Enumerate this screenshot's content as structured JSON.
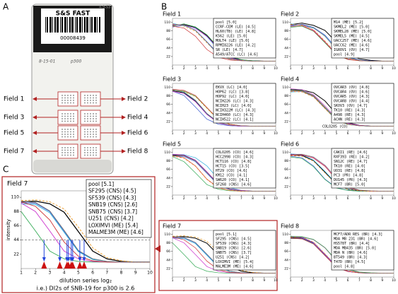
{
  "panel_labels": [
    "A",
    "B",
    "C"
  ],
  "slide": {
    "brand": "S&S FAST",
    "barcode_number": "00008439",
    "handwriting": [
      "4-9-53",
      "8-15-01",
      "p300"
    ]
  },
  "axes": {
    "x": [
      1,
      2,
      3,
      4,
      5,
      6,
      7,
      8,
      9,
      10
    ],
    "xlim": [
      1,
      10
    ],
    "xticks": [
      1,
      2,
      3,
      4,
      5,
      6,
      7,
      8,
      9,
      10
    ],
    "ylim": [
      0,
      120
    ],
    "yticks": [
      22,
      44,
      66,
      88,
      110
    ]
  },
  "palette": [
    "#000000",
    "#3355cc",
    "#22aadd",
    "#33aa55",
    "#cc33cc",
    "#cc3333",
    "#ee9922",
    "#777777"
  ],
  "fields": [
    {
      "title": "Field 1",
      "series": [
        {
          "name": "pool [5.0]",
          "di": 5.0,
          "values": [
            103,
            104,
            97,
            76,
            43,
            20,
            13,
            11,
            10,
            10
          ]
        },
        {
          "name": "CCRF-CEM (LE) [4.5]",
          "di": 4.5,
          "values": [
            98,
            102,
            90,
            60,
            29,
            16,
            12,
            10,
            10,
            10
          ]
        },
        {
          "name": "HL60(TB) (LE) [4.8]",
          "di": 4.8,
          "values": [
            107,
            101,
            95,
            73,
            40,
            19,
            12,
            11,
            10,
            10
          ]
        },
        {
          "name": "K562 (LE) [5.0]",
          "di": 5.0,
          "values": [
            100,
            106,
            98,
            78,
            45,
            22,
            14,
            11,
            10,
            10
          ]
        },
        {
          "name": "MOLT4 (LE) [5.0]",
          "di": 5.0,
          "values": [
            104,
            103,
            94,
            74,
            42,
            18,
            12,
            10,
            10,
            10
          ]
        },
        {
          "name": "RPMI8226 (LE) [4.2]",
          "di": 4.2,
          "values": [
            100,
            95,
            74,
            40,
            20,
            13,
            11,
            10,
            10,
            10
          ]
        },
        {
          "name": "SR (LE) [4.7]",
          "di": 4.7,
          "values": [
            106,
            100,
            87,
            57,
            28,
            16,
            12,
            10,
            10,
            10
          ]
        },
        {
          "name": "A549/ATCC (LC) [4.6]",
          "di": 4.6,
          "values": [
            102,
            103,
            89,
            59,
            26,
            15,
            11,
            10,
            10,
            10
          ]
        }
      ]
    },
    {
      "title": "Field 2",
      "series": [
        {
          "name": "M14 (ME) [5.2]",
          "di": 5.2,
          "values": [
            104,
            108,
            102,
            89,
            59,
            28,
            16,
            12,
            10,
            10
          ]
        },
        {
          "name": "SKMEL2 (ME) [5.0]",
          "di": 5.0,
          "values": [
            100,
            105,
            97,
            77,
            44,
            21,
            13,
            11,
            10,
            10
          ]
        },
        {
          "name": "SKMEL28 (ME) [5.0]",
          "di": 5.0,
          "values": [
            106,
            102,
            95,
            75,
            41,
            20,
            12,
            10,
            10,
            10
          ]
        },
        {
          "name": "SKMEL5 (ME) [4.5]",
          "di": 4.5,
          "values": [
            97,
            100,
            87,
            57,
            27,
            15,
            11,
            10,
            10,
            10
          ]
        },
        {
          "name": "UACC257 (ME) [4.6]",
          "di": 4.6,
          "values": [
            103,
            104,
            90,
            60,
            28,
            16,
            12,
            10,
            10,
            10
          ]
        },
        {
          "name": "UACC62 (ME) [4.6]",
          "di": 4.6,
          "values": [
            99,
            101,
            88,
            59,
            27,
            14,
            11,
            10,
            10,
            10
          ]
        },
        {
          "name": "IGROV1 (OV) [4.7]",
          "di": 4.7,
          "values": [
            105,
            102,
            91,
            62,
            30,
            16,
            12,
            10,
            10,
            10
          ]
        },
        {
          "name": "pool [4.9]",
          "di": 4.9,
          "values": [
            102,
            104,
            96,
            74,
            40,
            19,
            12,
            10,
            10,
            10
          ]
        }
      ]
    },
    {
      "title": "Field 3",
      "series": [
        {
          "name": "EKVX (LC) [4.0]",
          "di": 4.0,
          "values": [
            101,
            96,
            74,
            41,
            19,
            12,
            10,
            10,
            10,
            10
          ]
        },
        {
          "name": "HOP62 (LC) [3.8]",
          "di": 3.8,
          "values": [
            100,
            89,
            59,
            28,
            15,
            11,
            10,
            10,
            10,
            10
          ]
        },
        {
          "name": "HOP92 (LC) [4.0]",
          "di": 4.0,
          "values": [
            104,
            97,
            76,
            42,
            20,
            12,
            10,
            10,
            10,
            10
          ]
        },
        {
          "name": "NCIH226 (LC) [4.3]",
          "di": 4.3,
          "values": [
            103,
            100,
            87,
            57,
            27,
            15,
            11,
            10,
            10,
            10
          ]
        },
        {
          "name": "NCIH23 (LC) [4.0]",
          "di": 4.0,
          "values": [
            99,
            94,
            73,
            40,
            18,
            12,
            10,
            10,
            10,
            10
          ]
        },
        {
          "name": "NCIH322M (LC) [4.3]",
          "di": 4.3,
          "values": [
            105,
            102,
            89,
            58,
            28,
            15,
            11,
            10,
            10,
            10
          ]
        },
        {
          "name": "NCIH460 (LC) [4.3]",
          "di": 4.3,
          "values": [
            102,
            99,
            86,
            56,
            26,
            14,
            11,
            10,
            10,
            10
          ]
        },
        {
          "name": "NCIH522 (LC) [4.1]",
          "di": 4.1,
          "values": [
            103,
            98,
            77,
            43,
            20,
            13,
            11,
            10,
            10,
            10
          ]
        }
      ]
    },
    {
      "title": "Field 4",
      "note": "COLO205 (CO)",
      "series": [
        {
          "name": "OVCAR3 (OV) [4.8]",
          "di": 4.8,
          "values": [
            104,
            103,
            96,
            75,
            41,
            19,
            12,
            10,
            10,
            10
          ]
        },
        {
          "name": "OVCAR4 (OV) [4.6]",
          "di": 4.6,
          "values": [
            100,
            101,
            88,
            58,
            27,
            15,
            11,
            10,
            10,
            10
          ]
        },
        {
          "name": "OVCAR5 (OV) [4.3]",
          "di": 4.3,
          "values": [
            98,
            99,
            86,
            56,
            26,
            14,
            11,
            10,
            10,
            10
          ]
        },
        {
          "name": "OVCAR8 (OV) [4.4]",
          "di": 4.4,
          "values": [
            103,
            102,
            89,
            59,
            28,
            15,
            11,
            10,
            10,
            10
          ]
        },
        {
          "name": "SKOV3 (OV) [4.7]",
          "di": 4.7,
          "values": [
            106,
            104,
            91,
            62,
            30,
            17,
            12,
            10,
            10,
            10
          ]
        },
        {
          "name": "TK10 (RE) [4.3]",
          "di": 4.3,
          "values": [
            101,
            100,
            87,
            57,
            27,
            15,
            11,
            10,
            10,
            10
          ]
        },
        {
          "name": "A498 (RE) [4.3]",
          "di": 4.3,
          "values": [
            99,
            98,
            85,
            55,
            25,
            14,
            11,
            10,
            10,
            10
          ]
        },
        {
          "name": "ACHN (RE) [4.3]",
          "di": 4.3,
          "values": [
            102,
            101,
            88,
            58,
            26,
            15,
            11,
            10,
            10,
            10
          ]
        }
      ]
    },
    {
      "title": "Field 5",
      "series": [
        {
          "name": "COLO205 (CO) [4.6]",
          "di": 4.6,
          "values": [
            103,
            102,
            89,
            59,
            28,
            15,
            11,
            10,
            10,
            10
          ]
        },
        {
          "name": "HCC2998 (CO) [4.3]",
          "di": 4.3,
          "values": [
            100,
            99,
            86,
            56,
            26,
            14,
            11,
            10,
            10,
            10
          ]
        },
        {
          "name": "HCT116 (CO) [4.8]",
          "di": 4.8,
          "values": [
            104,
            104,
            96,
            75,
            41,
            19,
            12,
            10,
            10,
            10
          ]
        },
        {
          "name": "HCT15 (CO) [3.5]",
          "di": 3.5,
          "values": [
            99,
            86,
            57,
            27,
            15,
            11,
            10,
            10,
            10,
            10
          ]
        },
        {
          "name": "HT29 (CO) [4.6]",
          "di": 4.6,
          "values": [
            105,
            103,
            90,
            60,
            29,
            16,
            12,
            10,
            10,
            10
          ]
        },
        {
          "name": "KM12 (CO) [4.1]",
          "di": 4.1,
          "values": [
            102,
            96,
            75,
            41,
            19,
            12,
            10,
            10,
            10,
            10
          ]
        },
        {
          "name": "SW620 (CO) [4.1]",
          "di": 4.1,
          "values": [
            100,
            95,
            74,
            40,
            18,
            12,
            10,
            10,
            10,
            10
          ]
        },
        {
          "name": "SF268 (CNS) [4.6]",
          "di": 4.6,
          "values": [
            101,
            101,
            88,
            58,
            27,
            15,
            11,
            10,
            10,
            10
          ]
        }
      ]
    },
    {
      "title": "Field 6",
      "series": [
        {
          "name": "CAKI1 (RE) [4.6]",
          "di": 4.6,
          "values": [
            103,
            102,
            89,
            59,
            28,
            15,
            11,
            10,
            10,
            10
          ]
        },
        {
          "name": "RXF393 (RE) [4.2]",
          "di": 4.2,
          "values": [
            100,
            96,
            75,
            41,
            19,
            12,
            10,
            10,
            10,
            10
          ]
        },
        {
          "name": "SN12C (RE) [4.7]",
          "di": 4.7,
          "values": [
            106,
            104,
            90,
            61,
            29,
            16,
            12,
            10,
            10,
            10
          ]
        },
        {
          "name": "TK10 (RE) [4.0]",
          "di": 4.0,
          "values": [
            98,
            94,
            73,
            40,
            18,
            12,
            10,
            10,
            10,
            10
          ]
        },
        {
          "name": "UO31 (RE) [4.8]",
          "di": 4.8,
          "values": [
            104,
            103,
            96,
            75,
            41,
            19,
            12,
            10,
            10,
            10
          ]
        },
        {
          "name": "PC3 (PR) [4.8]",
          "di": 4.8,
          "values": [
            102,
            104,
            95,
            74,
            40,
            19,
            12,
            10,
            10,
            10
          ]
        },
        {
          "name": "DU145 (PR) [4.3]",
          "di": 4.3,
          "values": [
            101,
            100,
            87,
            57,
            27,
            15,
            11,
            10,
            10,
            10
          ]
        },
        {
          "name": "MCF7 (BR) [5.0]",
          "di": 5.0,
          "values": [
            105,
            105,
            98,
            77,
            44,
            21,
            13,
            11,
            10,
            10
          ]
        }
      ]
    },
    {
      "title": "Field 7",
      "series": [
        {
          "name": "pool [5.1]",
          "di": 5.1,
          "values": [
            103,
            104,
            100,
            87,
            57,
            27,
            15,
            11,
            10,
            10
          ]
        },
        {
          "name": "SF295 (CNS) [4.5]",
          "di": 4.5,
          "values": [
            102,
            101,
            88,
            58,
            27,
            15,
            11,
            10,
            10,
            10
          ]
        },
        {
          "name": "SF539 (CNS) [4.3]",
          "di": 4.3,
          "values": [
            100,
            99,
            86,
            56,
            26,
            14,
            11,
            10,
            10,
            10
          ]
        },
        {
          "name": "SNB19 (CNS) [2.6]",
          "di": 2.6,
          "values": [
            88,
            58,
            27,
            15,
            11,
            10,
            10,
            10,
            10,
            10
          ]
        },
        {
          "name": "SNB75 (CNS) [3.7]",
          "di": 3.7,
          "values": [
            101,
            88,
            58,
            27,
            15,
            11,
            10,
            10,
            10,
            10
          ]
        },
        {
          "name": "U251 (CNS) [4.2]",
          "di": 4.2,
          "values": [
            103,
            96,
            75,
            41,
            19,
            12,
            10,
            10,
            10,
            10
          ]
        },
        {
          "name": "LOXIMVI (ME) [5.4]",
          "di": 5.4,
          "values": [
            105,
            106,
            103,
            92,
            64,
            32,
            17,
            12,
            10,
            10
          ]
        },
        {
          "name": "MALME3M (ME) [4.6]",
          "di": 4.6,
          "values": [
            104,
            102,
            89,
            59,
            28,
            15,
            11,
            10,
            10,
            10
          ]
        }
      ]
    },
    {
      "title": "Field 8",
      "series": [
        {
          "name": "MCF7/ADR RES (BR) [4.3]",
          "di": 4.3,
          "values": [
            101,
            100,
            87,
            57,
            27,
            15,
            11,
            10,
            10,
            10
          ]
        },
        {
          "name": "MDA MB 231 (BR) [4.6]",
          "di": 4.6,
          "values": [
            103,
            102,
            89,
            59,
            28,
            15,
            11,
            10,
            10,
            10
          ]
        },
        {
          "name": "HS578T (BR) [4.4]",
          "di": 4.4,
          "values": [
            99,
            99,
            86,
            56,
            26,
            14,
            11,
            10,
            10,
            10
          ]
        },
        {
          "name": "MDA MB435 (BR) [5.0]",
          "di": 5.0,
          "values": [
            105,
            104,
            97,
            76,
            43,
            20,
            13,
            11,
            10,
            10
          ]
        },
        {
          "name": "MDA N (BR) [4.6]",
          "di": 4.6,
          "values": [
            104,
            101,
            88,
            58,
            27,
            15,
            11,
            10,
            10,
            10
          ]
        },
        {
          "name": "BT549 (BR) [4.3]",
          "di": 4.3,
          "values": [
            100,
            98,
            85,
            55,
            25,
            14,
            11,
            10,
            10,
            10
          ]
        },
        {
          "name": "T47D (BR) [4.5]",
          "di": 4.5,
          "values": [
            102,
            103,
            90,
            60,
            29,
            16,
            12,
            10,
            10,
            10
          ]
        },
        {
          "name": "pool [4.8]",
          "di": 4.8,
          "values": [
            104,
            103,
            96,
            75,
            41,
            19,
            12,
            10,
            10,
            10
          ]
        }
      ]
    }
  ],
  "detail": {
    "ylabel": "intensity",
    "xlabel": "dilution series log₂",
    "threshold": 44,
    "note": "i.e.) DI2s of SNB-19 for p300 is 2.6"
  }
}
